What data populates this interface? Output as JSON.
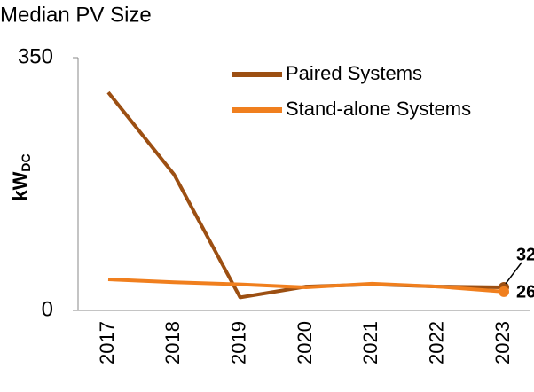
{
  "chart_data": {
    "type": "line",
    "title": "Median PV Size",
    "ylabel": {
      "main": "kW",
      "sub": "DC"
    },
    "categories": [
      "2017",
      "2018",
      "2019",
      "2020",
      "2021",
      "2022",
      "2023"
    ],
    "series": [
      {
        "name": "Paired Systems",
        "color": "#9c4f12",
        "values": [
          302,
          188,
          18,
          33,
          36,
          33,
          32
        ]
      },
      {
        "name": "Stand-alone Systems",
        "color": "#f07f1e",
        "values": [
          43,
          39,
          36,
          32,
          37,
          33,
          26
        ]
      }
    ],
    "ylim": [
      0,
      350
    ],
    "yticks": [
      0,
      350
    ],
    "grid": false,
    "legend": "upper right"
  }
}
